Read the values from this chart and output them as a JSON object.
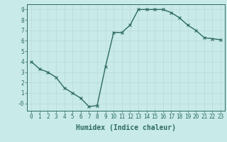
{
  "x": [
    0,
    1,
    2,
    3,
    4,
    5,
    6,
    7,
    8,
    9,
    10,
    11,
    12,
    13,
    14,
    15,
    16,
    17,
    18,
    19,
    20,
    21,
    22,
    23
  ],
  "y": [
    4.0,
    3.3,
    3.0,
    2.5,
    1.5,
    1.0,
    0.5,
    -0.3,
    -0.2,
    3.5,
    6.8,
    6.8,
    7.5,
    9.0,
    9.0,
    9.0,
    9.0,
    8.7,
    8.2,
    7.5,
    7.0,
    6.3,
    6.2,
    6.1
  ],
  "line_color": "#2e6b5e",
  "marker": "x",
  "marker_size": 3,
  "bg_color": "#c8eae8",
  "grid_color": "#b8dbd8",
  "tick_color": "#2e6b5e",
  "xlabel": "Humidex (Indice chaleur)",
  "xlabel_fontsize": 7,
  "xlim": [
    -0.5,
    23.5
  ],
  "ylim": [
    -0.7,
    9.5
  ],
  "yticks": [
    0,
    1,
    2,
    3,
    4,
    5,
    6,
    7,
    8,
    9
  ],
  "ytick_labels": [
    "-0",
    "1",
    "2",
    "3",
    "4",
    "5",
    "6",
    "7",
    "8",
    "9"
  ],
  "xticks": [
    0,
    1,
    2,
    3,
    4,
    5,
    6,
    7,
    8,
    9,
    10,
    11,
    12,
    13,
    14,
    15,
    16,
    17,
    18,
    19,
    20,
    21,
    22,
    23
  ],
  "tick_fontsize": 5.5,
  "line_width": 1.0,
  "markeredgewidth": 0.8
}
